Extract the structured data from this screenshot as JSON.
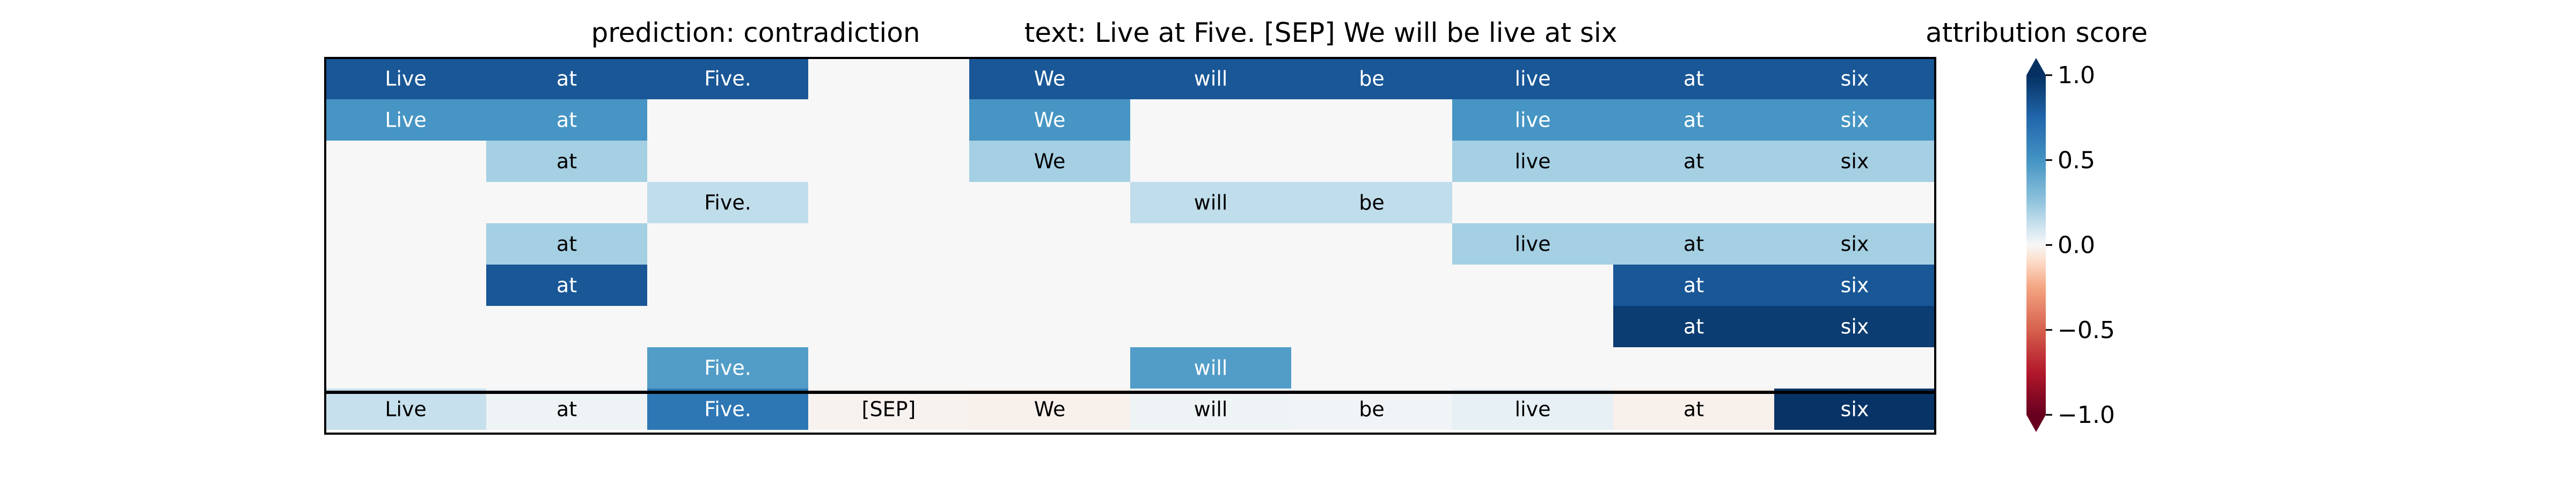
{
  "title_left": "prediction:  contradiction",
  "title_right": "text:  Live at Five. [SEP] We will be live at six",
  "colorbar_title": "attribution score",
  "colorbar_ticks": [
    "1.0",
    "0.5",
    "0.0",
    "−0.5",
    "−1.0"
  ],
  "chart_data": {
    "type": "heatmap",
    "title": "prediction:  contradiction     text:  Live at Five. [SEP] We will be live at six",
    "columns": [
      "Live",
      "at",
      "Five.",
      "[SEP]",
      "We",
      "will",
      "be",
      "live",
      "at",
      "six"
    ],
    "rows": [
      {
        "values": [
          1.0,
          1.0,
          1.0,
          0.0,
          1.0,
          1.0,
          1.0,
          1.0,
          1.0,
          1.0
        ],
        "labels": [
          "Live",
          "at",
          "Five.",
          "",
          "We",
          "will",
          "be",
          "live",
          "at",
          "six"
        ]
      },
      {
        "values": [
          0.6,
          0.6,
          0.0,
          0.0,
          0.6,
          0.0,
          0.0,
          0.6,
          0.6,
          0.6
        ],
        "labels": [
          "Live",
          "at",
          "",
          "",
          "We",
          "",
          "",
          "live",
          "at",
          "six"
        ]
      },
      {
        "values": [
          0.0,
          0.25,
          0.0,
          0.0,
          0.25,
          0.0,
          0.0,
          0.25,
          0.25,
          0.25
        ],
        "labels": [
          "",
          "at",
          "",
          "",
          "We",
          "",
          "",
          "live",
          "at",
          "six"
        ]
      },
      {
        "values": [
          0.0,
          0.0,
          0.17,
          0.0,
          0.0,
          0.17,
          0.17,
          0.0,
          0.0,
          0.0
        ],
        "labels": [
          "",
          "",
          "Five.",
          "",
          "",
          "will",
          "be",
          "",
          "",
          ""
        ]
      },
      {
        "values": [
          0.0,
          0.25,
          0.0,
          0.0,
          0.0,
          0.0,
          0.0,
          0.25,
          0.25,
          0.25
        ],
        "labels": [
          "",
          "at",
          "",
          "",
          "",
          "",
          "",
          "live",
          "at",
          "six"
        ]
      },
      {
        "values": [
          0.0,
          1.0,
          0.0,
          0.0,
          0.0,
          0.0,
          0.0,
          0.0,
          1.0,
          1.0
        ],
        "labels": [
          "",
          "at",
          "",
          "",
          "",
          "",
          "",
          "",
          "at",
          "six"
        ]
      },
      {
        "values": [
          0.0,
          0.0,
          0.0,
          0.0,
          0.0,
          0.0,
          0.0,
          0.0,
          1.15,
          1.15
        ],
        "labels": [
          "",
          "",
          "",
          "",
          "",
          "",
          "",
          "",
          "at",
          "six"
        ]
      },
      {
        "values": [
          0.0,
          0.0,
          0.55,
          0.0,
          0.0,
          0.55,
          0.0,
          0.0,
          0.0,
          0.0
        ],
        "labels": [
          "",
          "",
          "Five.",
          "",
          "",
          "will",
          "",
          "",
          "",
          ""
        ]
      }
    ],
    "summary_row": {
      "values": [
        0.15,
        0.03,
        0.8,
        -0.02,
        -0.03,
        0.03,
        0.02,
        0.05,
        -0.03,
        1.2
      ],
      "labels": [
        "Live",
        "at",
        "Five.",
        "[SEP]",
        "We",
        "will",
        "be",
        "live",
        "at",
        "six"
      ]
    },
    "colorbar": {
      "label": "attribution score",
      "min": -1.0,
      "max": 1.0,
      "ticks": [
        1.0,
        0.5,
        0.0,
        -0.5,
        -1.0
      ],
      "colormap": "RdBu",
      "extend": "both"
    }
  }
}
